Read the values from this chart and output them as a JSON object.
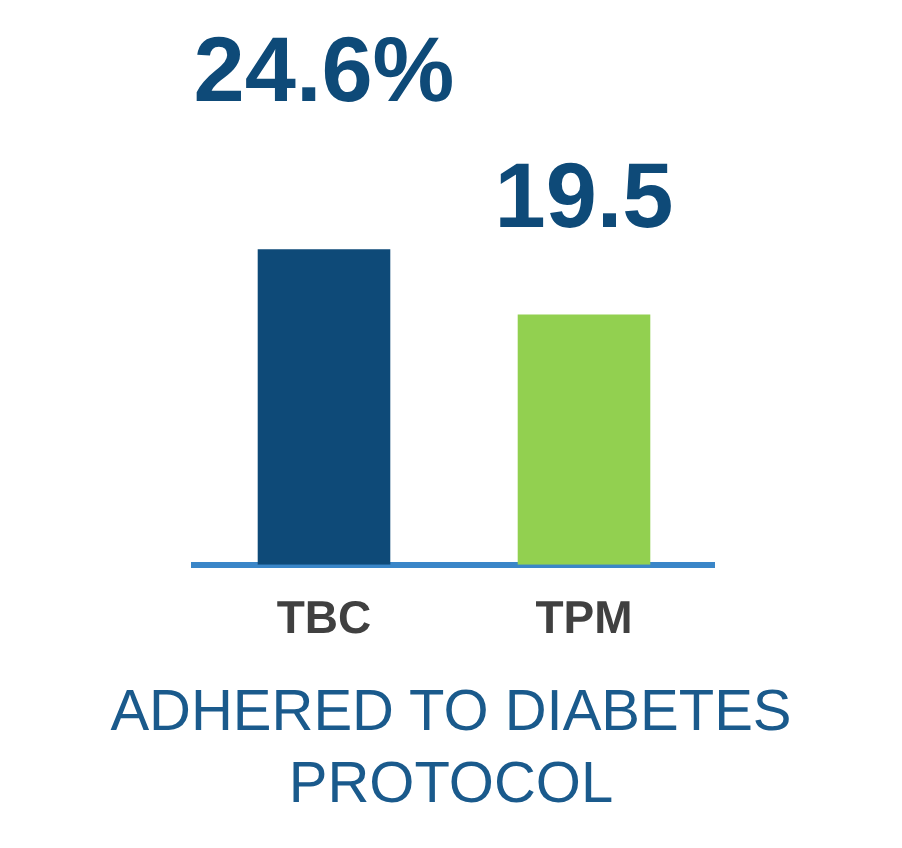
{
  "chart_data": {
    "type": "bar",
    "categories": [
      "TBC",
      "TPM"
    ],
    "values": [
      24.6,
      19.5
    ],
    "colors": [
      "#0e4a78",
      "#92d050"
    ],
    "value_labels": [
      "24.6%",
      "19.5"
    ],
    "xlabel": "ADHERED TO DIABETES PROTOCOL"
  }
}
